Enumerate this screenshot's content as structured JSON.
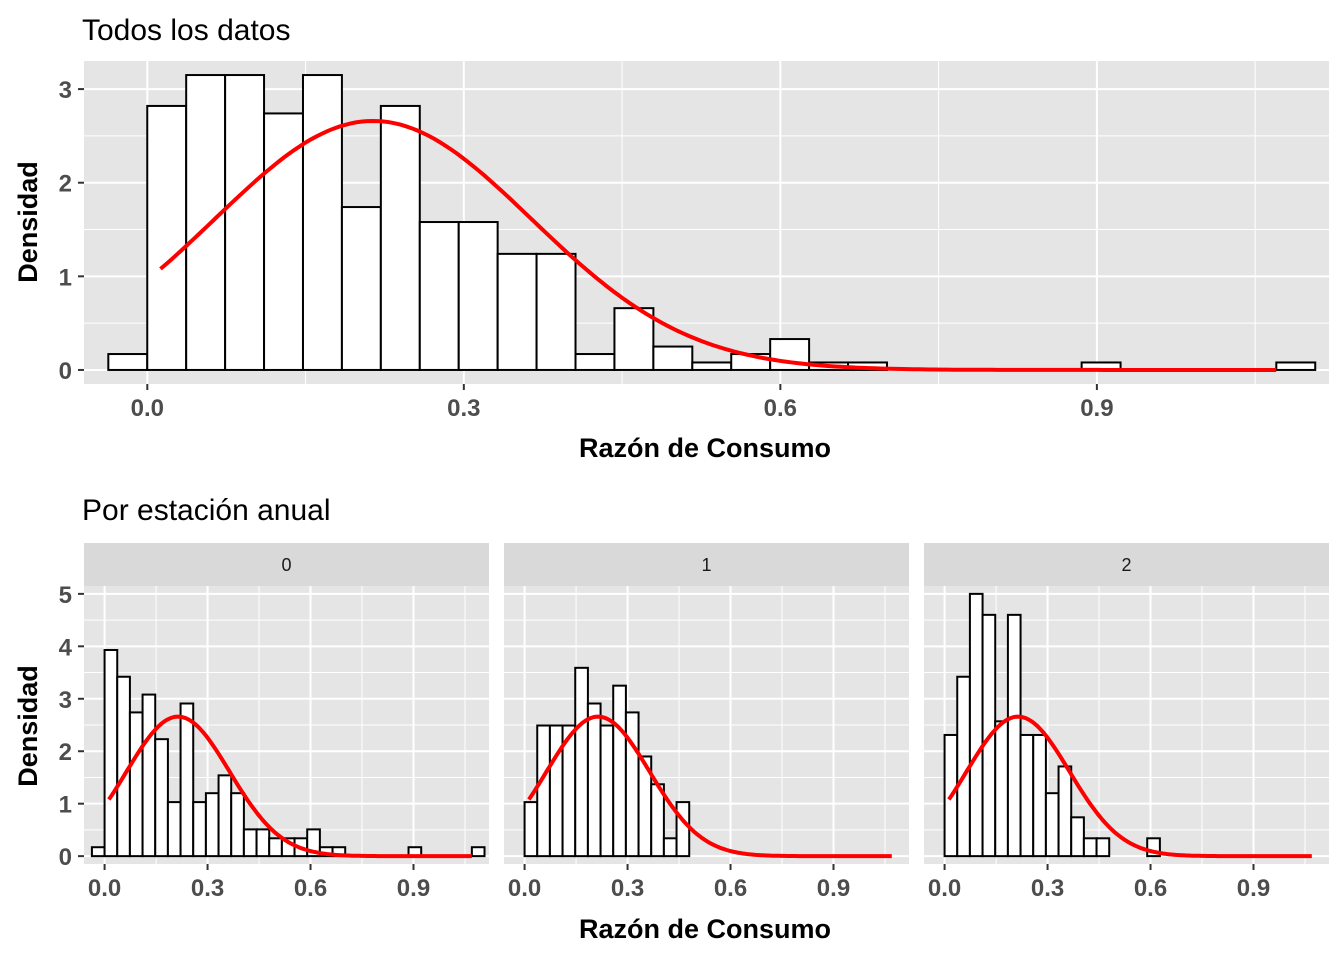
{
  "colors": {
    "panel_bg": "#e5e5e5",
    "grid": "#ffffff",
    "strip_bg": "#d9d9d9",
    "bar_fill": "#ffffff",
    "bar_stroke": "#000000",
    "curve": "#ff0000",
    "tick_text": "#4d4d4d"
  },
  "top": {
    "title": "Todos los datos",
    "xlabel": "Razón de Consumo",
    "ylabel": "Densidad",
    "xticks": [
      "0.0",
      "0.3",
      "0.6",
      "0.9"
    ],
    "yticks": [
      "0",
      "1",
      "2",
      "3"
    ]
  },
  "bottom": {
    "title": "Por estación anual",
    "xlabel": "Razón de Consumo",
    "ylabel": "Densidad",
    "xticks": [
      "0.0",
      "0.3",
      "0.6",
      "0.9"
    ],
    "yticks": [
      "0",
      "1",
      "2",
      "3",
      "4",
      "5"
    ],
    "facets": [
      "0",
      "1",
      "2"
    ]
  },
  "chart_data": [
    {
      "type": "bar",
      "subtype": "histogram-with-normal-curve",
      "title": "Todos los datos",
      "xlabel": "Razón de Consumo",
      "ylabel": "Densidad",
      "xlim": [
        -0.06,
        1.12
      ],
      "ylim": [
        -0.15,
        3.3
      ],
      "bin_width": 0.0369,
      "bin_centers": [
        -0.0185,
        0.0184,
        0.0553,
        0.0922,
        0.1291,
        0.166,
        0.2029,
        0.2398,
        0.2767,
        0.3136,
        0.3505,
        0.3874,
        0.4243,
        0.4612,
        0.4981,
        0.535,
        0.5719,
        0.6088,
        0.6457,
        0.6826,
        0.7195,
        0.7564,
        0.7933,
        0.8302,
        0.8671,
        0.904,
        0.9409,
        0.9778,
        1.0147,
        1.0516,
        1.0885
      ],
      "values": [
        0.17,
        2.82,
        3.15,
        3.15,
        2.74,
        3.15,
        1.74,
        2.82,
        1.58,
        1.58,
        1.24,
        1.24,
        0.17,
        0.66,
        0.25,
        0.08,
        0.17,
        0.33,
        0.08,
        0.08,
        0,
        0,
        0,
        0,
        0,
        0.08,
        0,
        0,
        0,
        0,
        0.08
      ],
      "curve": {
        "kind": "normal-density",
        "mean": 0.214,
        "sd": 0.15,
        "x_range": [
          0.0125,
          1.07
        ]
      }
    },
    {
      "type": "bar",
      "subtype": "histogram-with-normal-curve",
      "facet": "0",
      "xlabel": "Razón de Consumo",
      "ylabel": "Densidad",
      "xlim": [
        -0.06,
        1.12
      ],
      "ylim": [
        -0.15,
        5.15
      ],
      "bin_width": 0.0369,
      "bin_centers": [
        -0.0185,
        0.0184,
        0.0553,
        0.0922,
        0.1291,
        0.166,
        0.2029,
        0.2398,
        0.2767,
        0.3136,
        0.3505,
        0.3874,
        0.4243,
        0.4612,
        0.4981,
        0.535,
        0.5719,
        0.6088,
        0.6457,
        0.6826,
        0.7195,
        0.7564,
        0.7933,
        0.8302,
        0.8671,
        0.904,
        0.9409,
        0.9778,
        1.0147,
        1.0516,
        1.0885
      ],
      "values": [
        0.17,
        3.93,
        3.42,
        2.74,
        3.08,
        2.23,
        1.03,
        2.91,
        1.03,
        1.2,
        1.54,
        1.2,
        0.51,
        0.51,
        0.34,
        0.34,
        0.34,
        0.51,
        0.17,
        0.17,
        0,
        0,
        0,
        0,
        0,
        0.17,
        0,
        0,
        0,
        0,
        0.17
      ],
      "curve": {
        "kind": "normal-density",
        "mean": 0.214,
        "sd": 0.15,
        "x_range": [
          0.0125,
          1.07
        ]
      }
    },
    {
      "type": "bar",
      "subtype": "histogram-with-normal-curve",
      "facet": "1",
      "xlabel": "Razón de Consumo",
      "ylabel": "Densidad",
      "xlim": [
        -0.06,
        1.12
      ],
      "ylim": [
        -0.15,
        5.15
      ],
      "bin_width": 0.0369,
      "bin_centers": [
        -0.0185,
        0.0184,
        0.0553,
        0.0922,
        0.1291,
        0.166,
        0.2029,
        0.2398,
        0.2767,
        0.3136,
        0.3505,
        0.3874,
        0.4243,
        0.4612,
        0.4981
      ],
      "values": [
        0,
        1.03,
        2.49,
        2.49,
        2.49,
        3.59,
        2.91,
        2.49,
        3.25,
        2.74,
        1.9,
        1.37,
        0.34,
        1.03,
        0
      ],
      "curve": {
        "kind": "normal-density",
        "mean": 0.214,
        "sd": 0.15,
        "x_range": [
          0.0125,
          1.07
        ]
      }
    },
    {
      "type": "bar",
      "subtype": "histogram-with-normal-curve",
      "facet": "2",
      "xlabel": "Razón de Consumo",
      "ylabel": "Densidad",
      "xlim": [
        -0.06,
        1.12
      ],
      "ylim": [
        -0.15,
        5.15
      ],
      "bin_width": 0.0369,
      "bin_centers": [
        -0.0185,
        0.0184,
        0.0553,
        0.0922,
        0.1291,
        0.166,
        0.2029,
        0.2398,
        0.2767,
        0.3136,
        0.3505,
        0.3874,
        0.4243,
        0.4612,
        0.4981,
        0.535,
        0.5719,
        0.6088,
        0.6457
      ],
      "values": [
        0,
        2.31,
        3.42,
        5.0,
        4.6,
        2.57,
        4.6,
        2.31,
        2.31,
        1.2,
        1.71,
        0.74,
        0.34,
        0.34,
        0,
        0,
        0,
        0.34,
        0
      ],
      "curve": {
        "kind": "normal-density",
        "mean": 0.214,
        "sd": 0.15,
        "x_range": [
          0.0125,
          1.07
        ]
      }
    }
  ]
}
